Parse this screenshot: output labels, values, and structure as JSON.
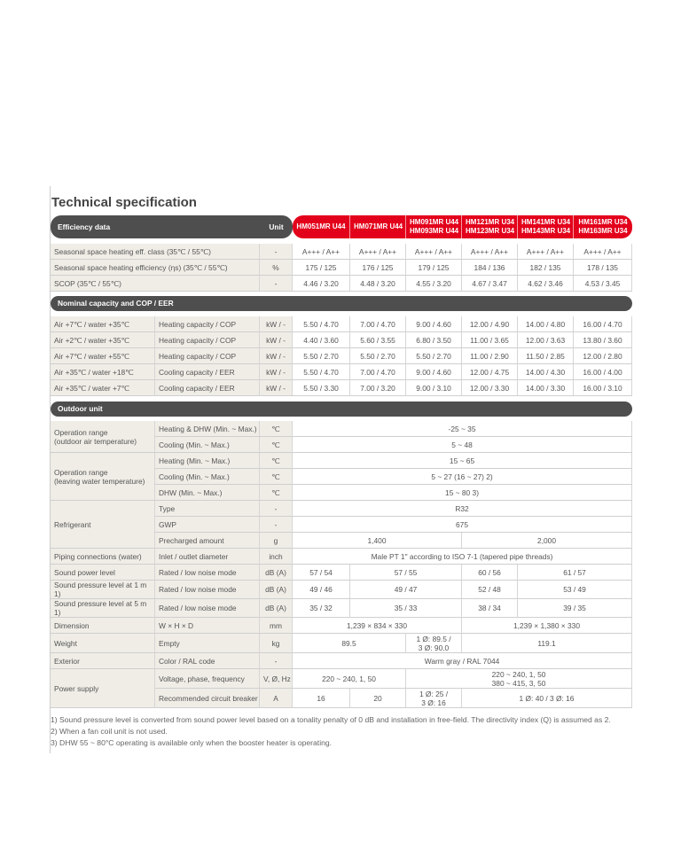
{
  "title": "Technical specification",
  "header": {
    "label": "Efficiency data",
    "unit": "Unit",
    "models": [
      [
        "HM051MR U44"
      ],
      [
        "HM071MR U44"
      ],
      [
        "HM091MR U44",
        "HM093MR U44"
      ],
      [
        "HM121MR U34",
        "HM123MR U34"
      ],
      [
        "HM141MR U34",
        "HM143MR U34"
      ],
      [
        "HM161MR U34",
        "HM163MR U34"
      ]
    ]
  },
  "efficiency": [
    {
      "label": "Seasonal space heating eff. class (35℃ / 55℃)",
      "unit": "-",
      "values": [
        "A+++ / A++",
        "A+++ / A++",
        "A+++ / A++",
        "A+++ / A++",
        "A+++ / A++",
        "A+++ / A++"
      ]
    },
    {
      "label": "Seasonal space heating efficiency (ηs) (35℃ / 55℃)",
      "unit": "%",
      "values": [
        "175 / 125",
        "176 / 125",
        "179 / 125",
        "184 / 136",
        "182 / 135",
        "178 / 135"
      ]
    },
    {
      "label": "SCOP (35℃ / 55℃)",
      "unit": "-",
      "values": [
        "4.46 / 3.20",
        "4.48 / 3.20",
        "4.55 / 3.20",
        "4.67 / 3.47",
        "4.62 / 3.46",
        "4.53 / 3.45"
      ]
    }
  ],
  "nominal_title": "Nominal capacity and COP / EER",
  "nominal": [
    {
      "cond": "Air +7℃  / water +35℃",
      "item": "Heating capacity / COP",
      "unit": "kW / -",
      "values": [
        "5.50 / 4.70",
        "7.00 / 4.70",
        "9.00 / 4.60",
        "12.00 / 4.90",
        "14.00 / 4.80",
        "16.00 / 4.70"
      ]
    },
    {
      "cond": "Air +2℃  / water +35℃",
      "item": "Heating capacity / COP",
      "unit": "kW / -",
      "values": [
        "4.40 / 3.60",
        "5.60 / 3.55",
        "6.80 / 3.50",
        "11.00 / 3.65",
        "12.00 / 3.63",
        "13.80 / 3.60"
      ]
    },
    {
      "cond": "Air +7℃  / water +55℃",
      "item": "Heating capacity / COP",
      "unit": "kW / -",
      "values": [
        "5.50 / 2.70",
        "5.50 / 2.70",
        "5.50 / 2.70",
        "11.00 / 2.90",
        "11.50 / 2.85",
        "12.00 / 2.80"
      ]
    },
    {
      "cond": "Air +35℃ / water +18℃",
      "item": "Cooling capacity / EER",
      "unit": "kW / -",
      "values": [
        "5.50 / 4.70",
        "7.00 / 4.70",
        "9.00 / 4.60",
        "12.00 / 4.75",
        "14.00 / 4.30",
        "16.00 / 4.00"
      ]
    },
    {
      "cond": "Air +35℃ / water +7℃",
      "item": "Cooling capacity / EER",
      "unit": "kW / -",
      "values": [
        "5.50 / 3.30",
        "7.00 / 3.20",
        "9.00 / 3.10",
        "12.00 / 3.30",
        "14.00 / 3.30",
        "16.00 / 3.10"
      ]
    }
  ],
  "outdoor_title": "Outdoor unit",
  "outdoor": [
    {
      "group": "Operation range\n(outdoor air temperature)",
      "item": "Heating & DHW (Min. ~ Max.)",
      "unit": "℃",
      "values": [
        "-25 ~ 35"
      ]
    },
    {
      "item": "Cooling (Min. ~ Max.)",
      "unit": "℃",
      "values": [
        "5 ~ 48"
      ]
    },
    {
      "group": "Operation range\n(leaving water temperature)",
      "item": "Heating (Min. ~ Max.)",
      "unit": "℃",
      "values": [
        "15 ~ 65"
      ]
    },
    {
      "item": "Cooling (Min. ~ Max.)",
      "unit": "℃",
      "values": [
        "5 ~ 27 (16 ~ 27) 2)"
      ]
    },
    {
      "item": "DHW (Min. ~ Max.)",
      "unit": "℃",
      "values": [
        "15 ~ 80 3)"
      ]
    },
    {
      "group": "Refrigerant",
      "item": "Type",
      "unit": "-",
      "values": [
        "R32"
      ]
    },
    {
      "item": "GWP",
      "unit": "-",
      "values": [
        "675"
      ]
    },
    {
      "item": "Precharged amount",
      "unit": "g",
      "values": [
        "1,400",
        "2,000"
      ]
    },
    {
      "group": "Piping connections (water)",
      "item": "Inlet / outlet diameter",
      "unit": "inch",
      "values": [
        "Male PT 1\" according to ISO 7-1 (tapered pipe threads)"
      ]
    },
    {
      "group": "Sound power level",
      "item": "Rated / low noise mode",
      "unit": "dB (A)",
      "values": [
        "57 / 54",
        "57 / 55",
        "60 / 56",
        "61 / 57"
      ]
    },
    {
      "group": "Sound pressure level at 1 m 1)",
      "item": "Rated / low noise mode",
      "unit": "dB (A)",
      "values": [
        "49 / 46",
        "49 / 47",
        "52 / 48",
        "53 / 49"
      ]
    },
    {
      "group": "Sound pressure level at 5 m 1)",
      "item": "Rated / low noise mode",
      "unit": "dB (A)",
      "values": [
        "35 / 32",
        "35 / 33",
        "38 / 34",
        "39 / 35"
      ]
    },
    {
      "group": "Dimension",
      "item": "W × H × D",
      "unit": "mm",
      "values": [
        "1,239 × 834 × 330",
        "1,239 × 1,380 × 330"
      ]
    },
    {
      "group": "Weight",
      "item": "Empty",
      "unit": "kg",
      "values": [
        "89.5",
        "1 Ø: 89.5 /\n3 Ø: 90.0",
        "119.1"
      ]
    },
    {
      "group": "Exterior",
      "item": "Color / RAL code",
      "unit": "-",
      "values": [
        "Warm gray / RAL 7044"
      ]
    },
    {
      "group": "Power supply",
      "item": "Voltage, phase, frequency",
      "unit": "V, Ø, Hz",
      "values": [
        "220 ~ 240, 1, 50",
        "220 ~ 240, 1, 50\n380 ~ 415, 3, 50"
      ]
    },
    {
      "item": "Recommended circuit breaker",
      "unit": "A",
      "values": [
        "16",
        "20",
        "1 Ø: 25 /\n3 Ø: 16",
        "1 Ø: 40 / 3 Ø: 16"
      ]
    }
  ],
  "footnotes": [
    "1) Sound pressure level is converted from sound power level based on a tonality penalty of 0 dB and installation in free-field. The directivity index (Q) is assumed as 2.",
    "2) When a fan coil unit is not used.",
    "3) DHW 55 ~ 80°C operating is available only when the booster heater is operating."
  ]
}
